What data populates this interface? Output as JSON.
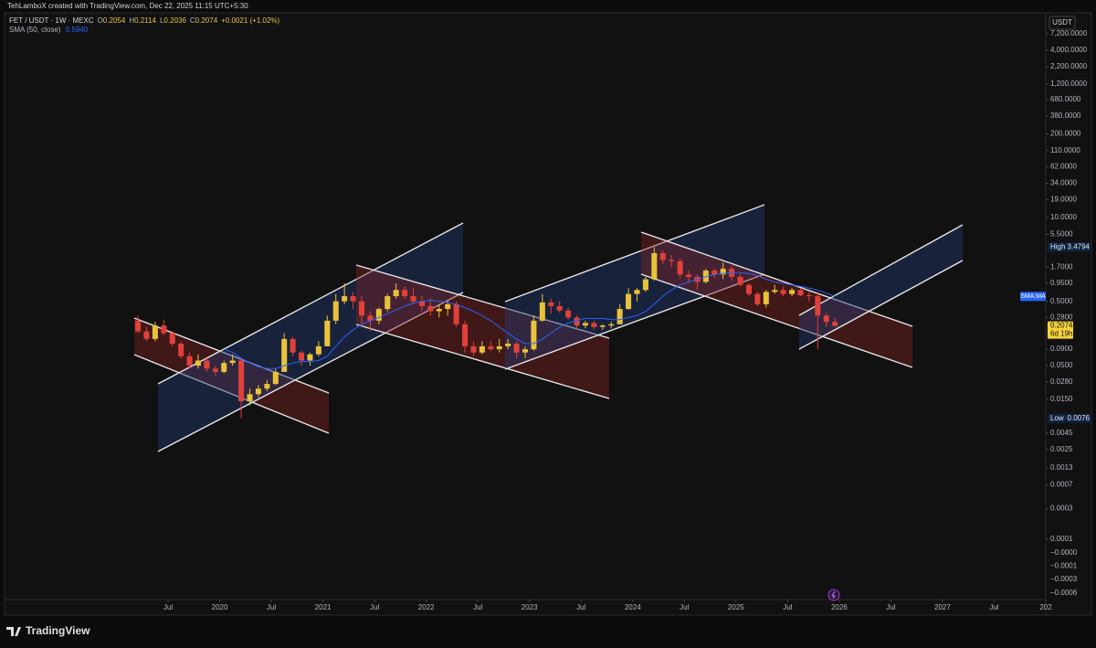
{
  "header": "TehLamboX created with TradingView.com, Dec 22, 2025 11:15 UTC+5:30",
  "legend": {
    "symbol": "FET / USDT · 1W · MEXC",
    "fields": [
      {
        "label": "O",
        "value": "0.2054"
      },
      {
        "label": "H",
        "value": "0.2114"
      },
      {
        "label": "L",
        "value": "0.2036"
      },
      {
        "label": "C",
        "value": "0.2074"
      }
    ],
    "change": "+0.0021 (+1.02%)",
    "indicator": "SMA (50, close)",
    "indicator_value": "0.5940"
  },
  "currency": "USDT",
  "footer": "TradingView",
  "chart_data": {
    "type": "candlestick",
    "log_scale": true,
    "up_color": "#e8c33a",
    "down_color": "#e0413a",
    "x": [
      "2019-03",
      "2019-04",
      "2019-05",
      "2019-06",
      "2019-07",
      "2019-08",
      "2019-09",
      "2019-10",
      "2019-11",
      "2019-12",
      "2020-01",
      "2020-02",
      "2020-03",
      "2020-04",
      "2020-05",
      "2020-06",
      "2020-07",
      "2020-08",
      "2020-09",
      "2020-10",
      "2020-11",
      "2020-12",
      "2021-01",
      "2021-02",
      "2021-03",
      "2021-04",
      "2021-05",
      "2021-06",
      "2021-07",
      "2021-08",
      "2021-09",
      "2021-10",
      "2021-11",
      "2021-12",
      "2022-01",
      "2022-02",
      "2022-03",
      "2022-04",
      "2022-05",
      "2022-06",
      "2022-07",
      "2022-08",
      "2022-09",
      "2022-10",
      "2022-11",
      "2022-12",
      "2023-01",
      "2023-02",
      "2023-03",
      "2023-04",
      "2023-05",
      "2023-06",
      "2023-07",
      "2023-08",
      "2023-09",
      "2023-10",
      "2023-11",
      "2023-12",
      "2024-01",
      "2024-02",
      "2024-03",
      "2024-04",
      "2024-05",
      "2024-06",
      "2024-07",
      "2024-08",
      "2024-09",
      "2024-10",
      "2024-11",
      "2024-12",
      "2025-01",
      "2025-02",
      "2025-03",
      "2025-04",
      "2025-05",
      "2025-06",
      "2025-07",
      "2025-08",
      "2025-09",
      "2025-10",
      "2025-11",
      "2025-12"
    ],
    "open": [
      0.25,
      0.17,
      0.13,
      0.21,
      0.16,
      0.11,
      0.07,
      0.05,
      0.06,
      0.045,
      0.04,
      0.055,
      0.06,
      0.014,
      0.018,
      0.022,
      0.026,
      0.04,
      0.13,
      0.08,
      0.06,
      0.075,
      0.1,
      0.25,
      0.5,
      0.6,
      0.5,
      0.3,
      0.25,
      0.38,
      0.6,
      0.75,
      0.6,
      0.5,
      0.42,
      0.35,
      0.38,
      0.45,
      0.22,
      0.1,
      0.08,
      0.1,
      0.09,
      0.1,
      0.11,
      0.08,
      0.09,
      0.25,
      0.48,
      0.42,
      0.36,
      0.28,
      0.21,
      0.23,
      0.2,
      0.21,
      0.22,
      0.38,
      0.65,
      0.75,
      1.1,
      2.8,
      2.2,
      2.1,
      1.3,
      1.2,
      1.0,
      1.5,
      1.3,
      1.6,
      1.2,
      0.9,
      0.65,
      0.45,
      0.7,
      0.75,
      0.65,
      0.75,
      0.62,
      0.6,
      0.3,
      0.24
    ],
    "high": [
      0.3,
      0.2,
      0.24,
      0.26,
      0.17,
      0.12,
      0.08,
      0.075,
      0.065,
      0.05,
      0.06,
      0.075,
      0.065,
      0.022,
      0.025,
      0.03,
      0.045,
      0.16,
      0.14,
      0.085,
      0.08,
      0.12,
      0.3,
      0.65,
      0.95,
      0.7,
      0.6,
      0.35,
      0.4,
      0.65,
      0.95,
      0.85,
      0.8,
      0.6,
      0.55,
      0.45,
      0.5,
      0.5,
      0.25,
      0.12,
      0.12,
      0.12,
      0.13,
      0.13,
      0.12,
      0.1,
      0.3,
      0.65,
      0.55,
      0.5,
      0.4,
      0.3,
      0.25,
      0.25,
      0.22,
      0.24,
      0.45,
      0.8,
      0.8,
      1.2,
      3.4794,
      3.1,
      2.6,
      2.3,
      1.5,
      1.3,
      1.6,
      1.6,
      2.0,
      1.75,
      1.35,
      0.95,
      0.7,
      0.75,
      0.9,
      0.85,
      0.8,
      0.8,
      0.7,
      0.7,
      0.33,
      0.28
    ],
    "low": [
      0.16,
      0.12,
      0.12,
      0.15,
      0.1,
      0.065,
      0.045,
      0.045,
      0.04,
      0.035,
      0.038,
      0.05,
      0.0076,
      0.012,
      0.016,
      0.02,
      0.025,
      0.04,
      0.07,
      0.05,
      0.05,
      0.07,
      0.1,
      0.22,
      0.45,
      0.38,
      0.2,
      0.17,
      0.22,
      0.35,
      0.55,
      0.55,
      0.45,
      0.35,
      0.3,
      0.28,
      0.3,
      0.2,
      0.08,
      0.07,
      0.075,
      0.085,
      0.08,
      0.09,
      0.065,
      0.065,
      0.085,
      0.24,
      0.32,
      0.33,
      0.26,
      0.18,
      0.19,
      0.18,
      0.18,
      0.19,
      0.22,
      0.37,
      0.5,
      0.7,
      1.05,
      1.9,
      1.7,
      1.15,
      0.95,
      0.75,
      0.95,
      1.15,
      1.1,
      1.05,
      0.85,
      0.6,
      0.42,
      0.4,
      0.65,
      0.6,
      0.6,
      0.6,
      0.5,
      0.09,
      0.2,
      0.2
    ],
    "close": [
      0.17,
      0.13,
      0.21,
      0.16,
      0.11,
      0.07,
      0.05,
      0.06,
      0.045,
      0.04,
      0.055,
      0.06,
      0.014,
      0.018,
      0.022,
      0.026,
      0.04,
      0.13,
      0.08,
      0.06,
      0.075,
      0.1,
      0.25,
      0.5,
      0.6,
      0.5,
      0.3,
      0.25,
      0.38,
      0.6,
      0.75,
      0.6,
      0.5,
      0.42,
      0.35,
      0.38,
      0.45,
      0.22,
      0.1,
      0.08,
      0.1,
      0.09,
      0.1,
      0.11,
      0.08,
      0.09,
      0.25,
      0.48,
      0.42,
      0.36,
      0.28,
      0.21,
      0.23,
      0.2,
      0.21,
      0.22,
      0.38,
      0.65,
      0.75,
      1.1,
      2.8,
      2.2,
      2.1,
      1.3,
      1.2,
      1.0,
      1.5,
      1.3,
      1.6,
      1.2,
      0.9,
      0.65,
      0.45,
      0.7,
      0.75,
      0.65,
      0.75,
      0.62,
      0.6,
      0.3,
      0.24,
      0.2074
    ],
    "sma": {
      "name": "SMA:MA",
      "color": "#2962ff",
      "values": [
        null,
        null,
        null,
        null,
        null,
        null,
        null,
        null,
        null,
        null,
        0.09,
        0.08,
        0.065,
        0.055,
        0.048,
        0.045,
        0.045,
        0.05,
        0.055,
        0.058,
        0.058,
        0.06,
        0.07,
        0.1,
        0.14,
        0.18,
        0.22,
        0.25,
        0.28,
        0.32,
        0.37,
        0.42,
        0.47,
        0.5,
        0.52,
        0.5,
        0.48,
        0.45,
        0.4,
        0.35,
        0.3,
        0.25,
        0.2,
        0.16,
        0.13,
        0.11,
        0.11,
        0.13,
        0.16,
        0.2,
        0.23,
        0.25,
        0.27,
        0.27,
        0.27,
        0.26,
        0.26,
        0.28,
        0.3,
        0.35,
        0.45,
        0.6,
        0.75,
        0.9,
        1.0,
        1.1,
        1.2,
        1.3,
        1.35,
        1.4,
        1.4,
        1.35,
        1.25,
        1.1,
        1.0,
        0.95,
        0.9,
        0.85,
        0.8,
        0.75,
        0.67,
        0.594
      ]
    },
    "xlim": [
      "2017-12",
      "2028-01"
    ],
    "xticks": [
      {
        "value": "2019-07",
        "label": "Jul"
      },
      {
        "value": "2020-01",
        "label": "2020"
      },
      {
        "value": "2020-07",
        "label": "Jul"
      },
      {
        "value": "2021-01",
        "label": "2021"
      },
      {
        "value": "2021-07",
        "label": "Jul"
      },
      {
        "value": "2022-01",
        "label": "2022"
      },
      {
        "value": "2022-07",
        "label": "Jul"
      },
      {
        "value": "2023-01",
        "label": "2023"
      },
      {
        "value": "2023-07",
        "label": "Jul"
      },
      {
        "value": "2024-01",
        "label": "2024"
      },
      {
        "value": "2024-07",
        "label": "Jul"
      },
      {
        "value": "2025-01",
        "label": "2025"
      },
      {
        "value": "2025-07",
        "label": "Jul"
      },
      {
        "value": "2026-01",
        "label": "2026"
      },
      {
        "value": "2026-07",
        "label": "Jul"
      },
      {
        "value": "2027-01",
        "label": "2027"
      },
      {
        "value": "2027-07",
        "label": "Jul"
      },
      {
        "value": "2028-01",
        "label": "202"
      }
    ],
    "ylim": [
      1.16e-05,
      15200
    ],
    "yticks": [
      {
        "value": 7200,
        "label": "7,200.0000"
      },
      {
        "value": 4000,
        "label": "4,000.0000"
      },
      {
        "value": 2200,
        "label": "2,200.0000"
      },
      {
        "value": 1200,
        "label": "1,200.0000"
      },
      {
        "value": 680,
        "label": "680.0000"
      },
      {
        "value": 380,
        "label": "380.0000"
      },
      {
        "value": 200,
        "label": "200.0000"
      },
      {
        "value": 110,
        "label": "110.0000"
      },
      {
        "value": 62,
        "label": "62.0000"
      },
      {
        "value": 34,
        "label": "34.0000"
      },
      {
        "value": 19,
        "label": "19.0000"
      },
      {
        "value": 10,
        "label": "10.0000"
      },
      {
        "value": 5.5,
        "label": "5.5000"
      },
      {
        "value": 1.7,
        "label": "1.7000"
      },
      {
        "value": 0.95,
        "label": "0.9500"
      },
      {
        "value": 0.5,
        "label": "0.5000"
      },
      {
        "value": 0.28,
        "label": "0.2800"
      },
      {
        "value": 0.09,
        "label": "0.0900"
      },
      {
        "value": 0.05,
        "label": "0.0500"
      },
      {
        "value": 0.028,
        "label": "0.0280"
      },
      {
        "value": 0.015,
        "label": "0.0150"
      },
      {
        "value": 0.0045,
        "label": "0.0045"
      },
      {
        "value": 0.0025,
        "label": "0.0025"
      },
      {
        "value": 0.0013,
        "label": "0.0013"
      },
      {
        "value": 0.0007,
        "label": "0.0007"
      },
      {
        "value": 0.0003,
        "label": "0.0003"
      },
      {
        "value": 0.0001,
        "label": "0.0001"
      }
    ],
    "y_extra_labels": [
      "−0.0000",
      "−0.0001",
      "−0.0003",
      "−0.0006"
    ],
    "price_labels": [
      {
        "name": "High",
        "value": 3.4794
      },
      {
        "name": "Low",
        "value": 0.0076
      }
    ],
    "last_price": {
      "value": 0.2074,
      "countdown": "6d 19h"
    }
  }
}
